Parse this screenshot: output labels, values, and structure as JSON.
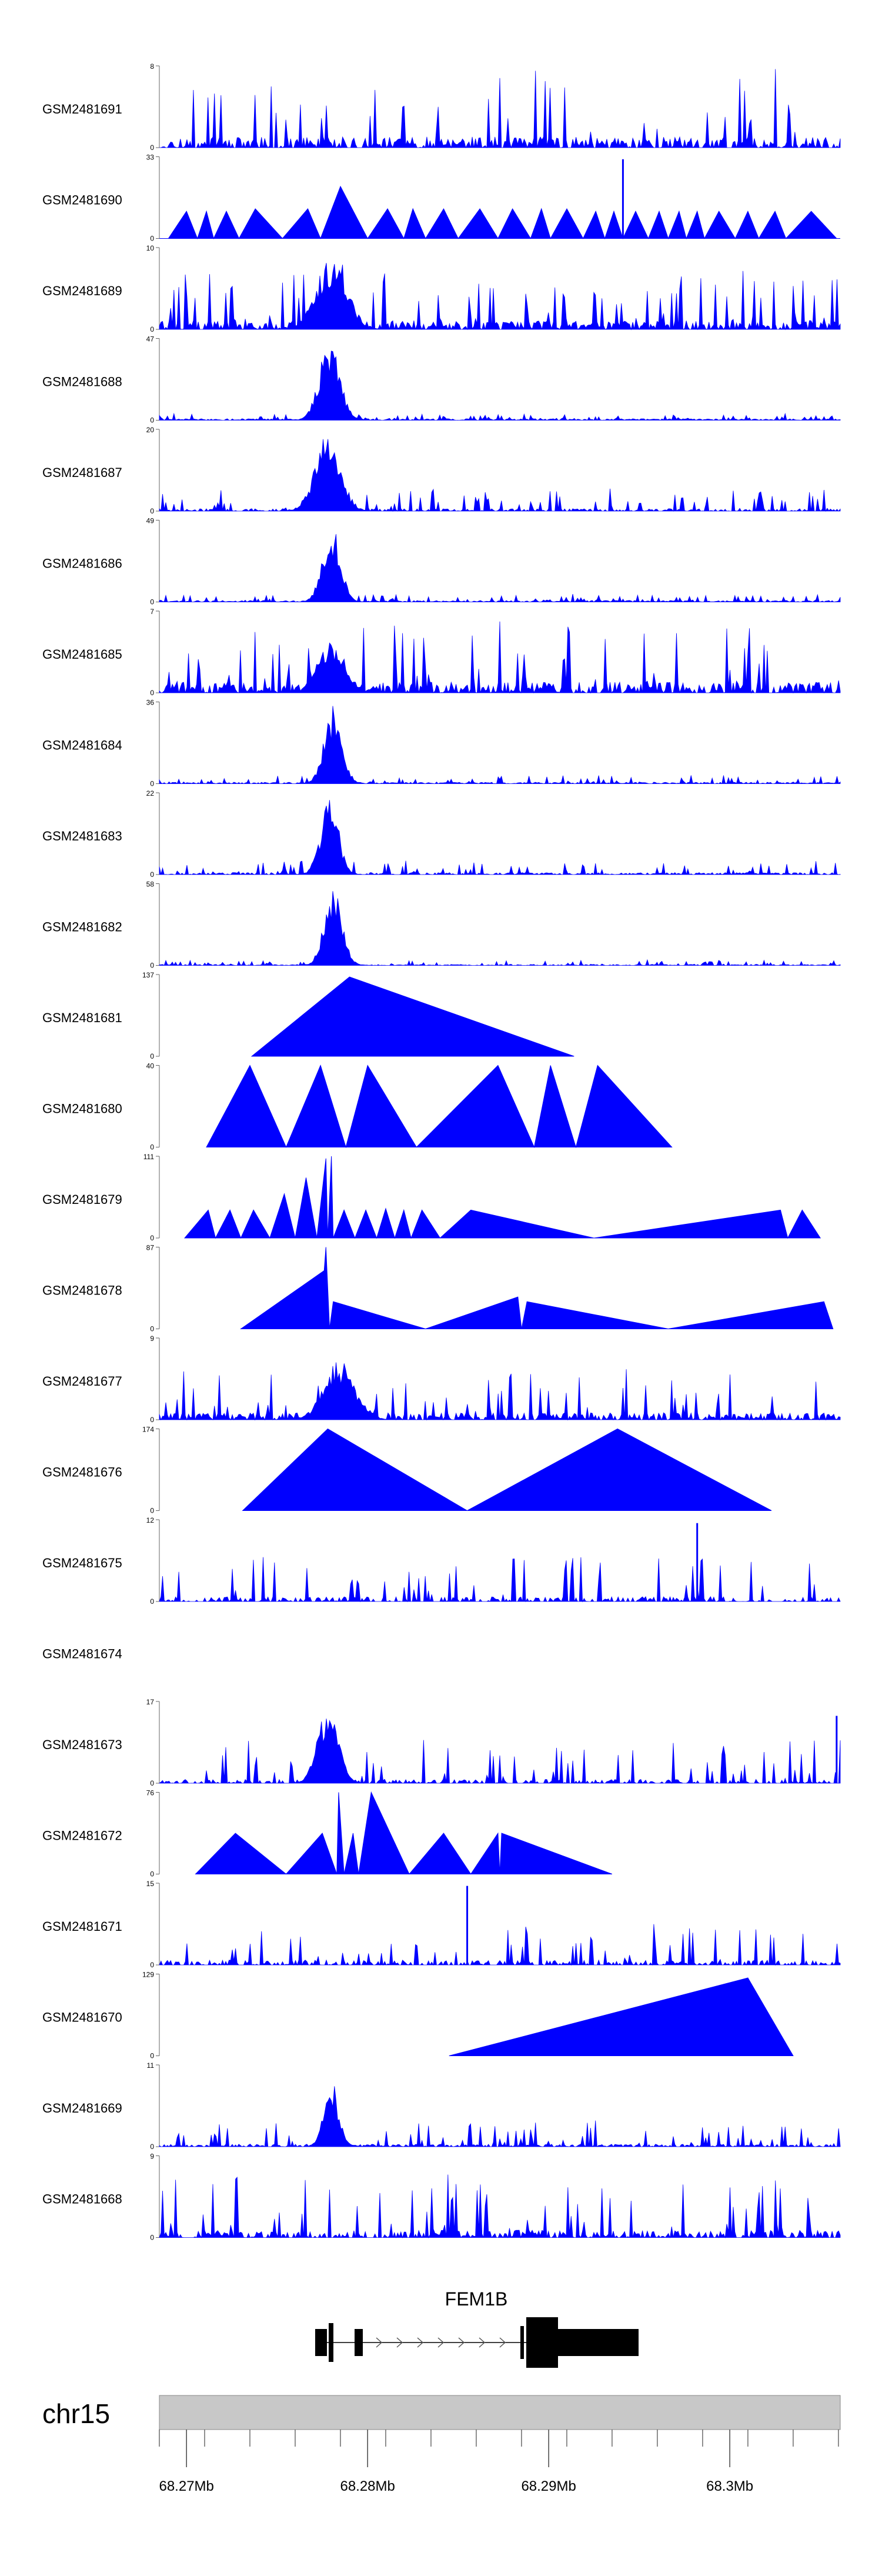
{
  "chart_data": {
    "type": "area",
    "title": "",
    "color": "#0000ff",
    "chromosome": "chr15",
    "gene": {
      "name": "FEM1B"
    },
    "x_range_mb": [
      68.2685,
      68.3061
    ],
    "x_ticks": [
      {
        "value": 68.27,
        "label": "68.27Mb"
      },
      {
        "value": 68.28,
        "label": "68.28Mb"
      },
      {
        "value": 68.29,
        "label": "68.29Mb"
      },
      {
        "value": 68.3,
        "label": "68.3Mb"
      }
    ],
    "tracks": [
      {
        "name": "GSM2481691",
        "ymax": 8,
        "ymax_label": "8",
        "style": "noisy",
        "seed": 11,
        "base": 0.22,
        "spike": 0.85,
        "sparsity": 0.3,
        "peak": null
      },
      {
        "name": "GSM2481690",
        "ymax": 33,
        "ymax_label": "33",
        "style": "polygon",
        "points": [
          [
            68.2685,
            0
          ],
          [
            68.269,
            0
          ],
          [
            68.27,
            11
          ],
          [
            68.2706,
            0
          ],
          [
            68.2711,
            11
          ],
          [
            68.2715,
            0
          ],
          [
            68.2722,
            11
          ],
          [
            68.2729,
            0
          ],
          [
            68.2738,
            12
          ],
          [
            68.2753,
            0
          ],
          [
            68.2767,
            12
          ],
          [
            68.2774,
            0
          ],
          [
            68.2785,
            21
          ],
          [
            68.28,
            0
          ],
          [
            68.2811,
            12
          ],
          [
            68.282,
            0
          ],
          [
            68.2825,
            12
          ],
          [
            68.2832,
            0
          ],
          [
            68.2842,
            12
          ],
          [
            68.285,
            0
          ],
          [
            68.2862,
            12
          ],
          [
            68.2872,
            0
          ],
          [
            68.288,
            12
          ],
          [
            68.289,
            0
          ],
          [
            68.2896,
            12
          ],
          [
            68.2901,
            0
          ],
          [
            68.291,
            12
          ],
          [
            68.2919,
            0
          ],
          [
            68.2926,
            11
          ],
          [
            68.2931,
            0
          ],
          [
            68.2936,
            11
          ],
          [
            68.2941,
            0
          ],
          [
            68.2948,
            11
          ],
          [
            68.2955,
            0
          ],
          [
            68.2961,
            11
          ],
          [
            68.2966,
            0
          ],
          [
            68.2972,
            11
          ],
          [
            68.2976,
            0
          ],
          [
            68.2982,
            11
          ],
          [
            68.2986,
            0
          ],
          [
            68.2994,
            11
          ],
          [
            68.3003,
            0
          ],
          [
            68.301,
            11
          ],
          [
            68.3016,
            0
          ],
          [
            68.3025,
            11
          ],
          [
            68.3031,
            0
          ],
          [
            68.3045,
            11
          ],
          [
            68.3059,
            0
          ],
          [
            68.3061,
            0
          ]
        ],
        "spikes": [
          [
            68.2941,
            32
          ]
        ]
      },
      {
        "name": "GSM2481689",
        "ymax": 10,
        "ymax_label": "10",
        "style": "noisy",
        "seed": 23,
        "base": 0.18,
        "spike": 0.7,
        "sparsity": 0.15,
        "peak": [
          68.278,
          0.0012,
          0.9
        ]
      },
      {
        "name": "GSM2481688",
        "ymax": 47,
        "ymax_label": "47",
        "style": "noisy",
        "seed": 31,
        "base": 0.03,
        "spike": 0.07,
        "sparsity": 0.1,
        "peak": [
          68.2779,
          0.0008,
          0.98
        ]
      },
      {
        "name": "GSM2481687",
        "ymax": 20,
        "ymax_label": "20",
        "style": "noisy",
        "seed": 37,
        "base": 0.05,
        "spike": 0.25,
        "sparsity": 0.25,
        "peak": [
          68.2778,
          0.001,
          0.95
        ]
      },
      {
        "name": "GSM2481686",
        "ymax": 49,
        "ymax_label": "49",
        "style": "noisy",
        "seed": 41,
        "base": 0.03,
        "spike": 0.08,
        "sparsity": 0.1,
        "peak": [
          68.278,
          0.0007,
          0.98
        ]
      },
      {
        "name": "GSM2481685",
        "ymax": 7,
        "ymax_label": "7",
        "style": "noisy",
        "seed": 43,
        "base": 0.22,
        "spike": 0.8,
        "sparsity": 0.2,
        "peak": [
          68.278,
          0.001,
          0.7
        ]
      },
      {
        "name": "GSM2481684",
        "ymax": 36,
        "ymax_label": "36",
        "style": "noisy",
        "seed": 47,
        "base": 0.03,
        "spike": 0.09,
        "sparsity": 0.1,
        "peak": [
          68.2781,
          0.0007,
          0.97
        ]
      },
      {
        "name": "GSM2481683",
        "ymax": 22,
        "ymax_label": "22",
        "style": "noisy",
        "seed": 53,
        "base": 0.04,
        "spike": 0.15,
        "sparsity": 0.2,
        "peak": [
          68.2779,
          0.0007,
          0.97
        ]
      },
      {
        "name": "GSM2481682",
        "ymax": 58,
        "ymax_label": "58",
        "style": "noisy",
        "seed": 59,
        "base": 0.02,
        "spike": 0.06,
        "sparsity": 0.15,
        "peak": [
          68.2781,
          0.0007,
          0.98
        ]
      },
      {
        "name": "GSM2481681",
        "ymax": 137,
        "ymax_label": "137",
        "style": "polygon",
        "points": [
          [
            68.2736,
            0
          ],
          [
            68.279,
            133
          ],
          [
            68.2914,
            0
          ]
        ]
      },
      {
        "name": "GSM2481680",
        "ymax": 40,
        "ymax_label": "40",
        "style": "polygon",
        "points": [
          [
            68.2711,
            0
          ],
          [
            68.2735,
            40
          ],
          [
            68.2755,
            0
          ],
          [
            68.2774,
            40
          ],
          [
            68.2788,
            0
          ],
          [
            68.28,
            40
          ],
          [
            68.2827,
            0
          ],
          [
            68.2872,
            40
          ],
          [
            68.2892,
            0
          ],
          [
            68.2901,
            40
          ],
          [
            68.2915,
            0
          ],
          [
            68.2927,
            40
          ],
          [
            68.2968,
            0
          ]
        ]
      },
      {
        "name": "GSM2481679",
        "ymax": 111,
        "ymax_label": "111",
        "style": "polygon",
        "points": [
          [
            68.2699,
            0
          ],
          [
            68.2712,
            38
          ],
          [
            68.2716,
            0
          ],
          [
            68.2724,
            38
          ],
          [
            68.273,
            0
          ],
          [
            68.2737,
            38
          ],
          [
            68.2746,
            0
          ],
          [
            68.2754,
            60
          ],
          [
            68.276,
            0
          ],
          [
            68.2766,
            82
          ],
          [
            68.2772,
            0
          ],
          [
            68.2777,
            108
          ],
          [
            68.2778,
            0
          ],
          [
            68.278,
            111
          ],
          [
            68.2781,
            0
          ],
          [
            68.2787,
            38
          ],
          [
            68.2793,
            0
          ],
          [
            68.2799,
            38
          ],
          [
            68.2805,
            0
          ],
          [
            68.281,
            40
          ],
          [
            68.2815,
            0
          ],
          [
            68.282,
            38
          ],
          [
            68.2824,
            0
          ],
          [
            68.283,
            38
          ],
          [
            68.284,
            0
          ],
          [
            68.2857,
            38
          ],
          [
            68.2925,
            0
          ],
          [
            68.3028,
            38
          ],
          [
            68.3032,
            0
          ],
          [
            68.304,
            38
          ],
          [
            68.305,
            0
          ]
        ]
      },
      {
        "name": "GSM2481678",
        "ymax": 87,
        "ymax_label": "87",
        "style": "polygon",
        "points": [
          [
            68.273,
            0
          ],
          [
            68.2776,
            62
          ],
          [
            68.2777,
            87
          ],
          [
            68.2779,
            0
          ],
          [
            68.2781,
            29
          ],
          [
            68.2832,
            0
          ],
          [
            68.2883,
            34
          ],
          [
            68.2885,
            0
          ],
          [
            68.2888,
            29
          ],
          [
            68.2966,
            0
          ],
          [
            68.3052,
            29
          ],
          [
            68.3057,
            0
          ]
        ]
      },
      {
        "name": "GSM2481677",
        "ymax": 9,
        "ymax_label": "9",
        "style": "noisy",
        "seed": 61,
        "base": 0.14,
        "spike": 0.55,
        "sparsity": 0.2,
        "peak": [
          68.2785,
          0.0012,
          0.75
        ]
      },
      {
        "name": "GSM2481676",
        "ymax": 174,
        "ymax_label": "174",
        "style": "polygon",
        "points": [
          [
            68.2731,
            0
          ],
          [
            68.2778,
            174
          ],
          [
            68.2855,
            0
          ],
          [
            68.2938,
            174
          ],
          [
            68.3023,
            0
          ]
        ]
      },
      {
        "name": "GSM2481675",
        "ymax": 12,
        "ymax_label": "12",
        "style": "noisy",
        "seed": 67,
        "base": 0.1,
        "spike": 0.5,
        "sparsity": 0.35,
        "peak": null,
        "spikes": [
          [
            68.2982,
            11.5
          ]
        ]
      },
      {
        "name": "GSM2481674",
        "ymax": null,
        "ymax_label": "",
        "style": "empty"
      },
      {
        "name": "GSM2481673",
        "ymax": 17,
        "ymax_label": "17",
        "style": "noisy",
        "seed": 71,
        "base": 0.08,
        "spike": 0.55,
        "sparsity": 0.35,
        "peak": [
          68.2778,
          0.0008,
          0.95
        ],
        "spikes": [
          [
            68.3059,
            14
          ]
        ]
      },
      {
        "name": "GSM2481672",
        "ymax": 76,
        "ymax_label": "76",
        "style": "polygon",
        "points": [
          [
            68.2705,
            0
          ],
          [
            68.2727,
            38
          ],
          [
            68.2755,
            0
          ],
          [
            68.2775,
            38
          ],
          [
            68.2783,
            0
          ],
          [
            68.2784,
            76
          ],
          [
            68.2787,
            0
          ],
          [
            68.2792,
            38
          ],
          [
            68.2795,
            0
          ],
          [
            68.2802,
            76
          ],
          [
            68.2823,
            0
          ],
          [
            68.2842,
            38
          ],
          [
            68.2857,
            0
          ],
          [
            68.2872,
            38
          ],
          [
            68.2873,
            0
          ],
          [
            68.2874,
            38
          ],
          [
            68.2935,
            0
          ]
        ]
      },
      {
        "name": "GSM2481671",
        "ymax": 15,
        "ymax_label": "15",
        "style": "noisy",
        "seed": 73,
        "base": 0.1,
        "spike": 0.45,
        "sparsity": 0.4,
        "peak": null,
        "spikes": [
          [
            68.2855,
            14.5
          ]
        ]
      },
      {
        "name": "GSM2481670",
        "ymax": 129,
        "ymax_label": "129",
        "style": "polygon",
        "points": [
          [
            68.2845,
            0
          ],
          [
            68.301,
            123
          ],
          [
            68.3035,
            0
          ]
        ]
      },
      {
        "name": "GSM2481669",
        "ymax": 11,
        "ymax_label": "11",
        "style": "noisy",
        "seed": 79,
        "base": 0.05,
        "spike": 0.3,
        "sparsity": 0.25,
        "peak": [
          68.278,
          0.0006,
          0.8
        ]
      },
      {
        "name": "GSM2481668",
        "ymax": 9,
        "ymax_label": "9",
        "style": "noisy",
        "seed": 83,
        "base": 0.15,
        "spike": 0.75,
        "sparsity": 0.3,
        "peak": null
      }
    ]
  }
}
